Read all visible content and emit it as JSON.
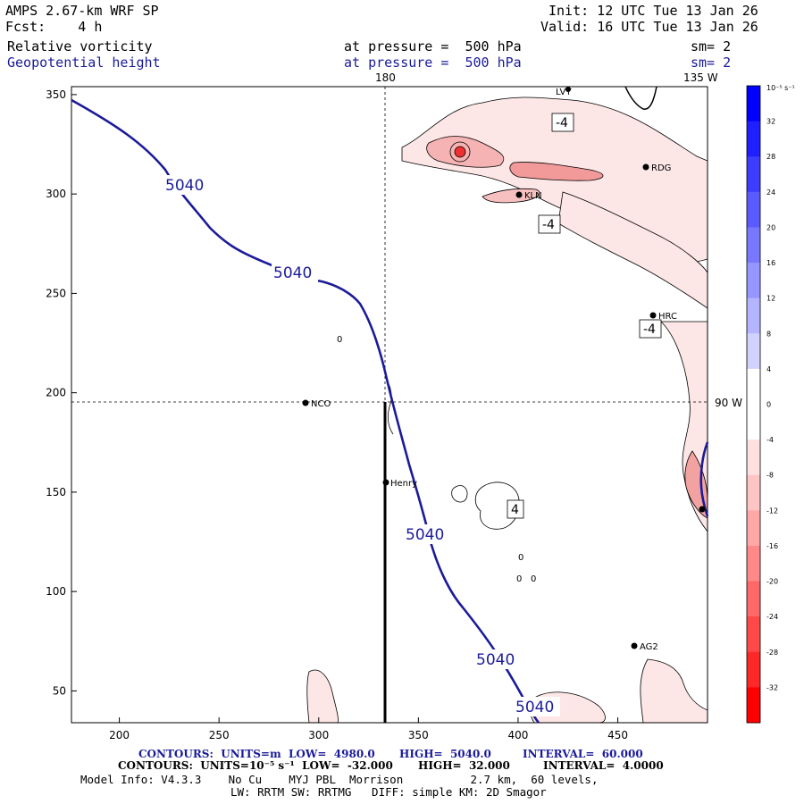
{
  "header": {
    "model_title": "AMPS 2.67-km WRF SP",
    "forecast": "Fcst:    4 h",
    "init": "Init: 12 UTC Tue 13 Jan 26",
    "valid": "Valid: 16 UTC Tue 13 Jan 26",
    "field1_name": "Relative vorticity",
    "field1_level": "at pressure =  500 hPa",
    "field1_sm": "sm= 2",
    "field2_name": "Geopotential height",
    "field2_level": "at pressure =  500 hPa",
    "field2_sm": "sm= 2"
  },
  "map": {
    "top_labels": [
      "180",
      "135 W"
    ],
    "right_label": "90 W",
    "x_axis": {
      "ticks": [
        200,
        250,
        300,
        350,
        400,
        450
      ],
      "range": [
        176,
        495
      ]
    },
    "y_axis": {
      "ticks": [
        50,
        100,
        150,
        200,
        250,
        300,
        350
      ],
      "range": [
        34,
        354
      ]
    },
    "stations": [
      {
        "name": "NCO",
        "x": 293,
        "y": 195
      },
      {
        "name": "Henry",
        "x": 335,
        "y": 155
      },
      {
        "name": "KLN",
        "x": 401,
        "y": 300
      },
      {
        "name": "RDG",
        "x": 465,
        "y": 314
      },
      {
        "name": "HRC",
        "x": 468,
        "y": 239
      },
      {
        "name": "AG2",
        "x": 459,
        "y": 72
      },
      {
        "name": "LVT",
        "x": 425,
        "y": 354
      }
    ],
    "height_contour_labels": [
      "5040",
      "5040",
      "5040",
      "5040",
      "5040"
    ],
    "vorticity_labels": [
      "-4",
      "-4",
      "-4",
      "4"
    ],
    "small_labels": [
      "0",
      "0",
      "0",
      "0"
    ]
  },
  "colorbar": {
    "unit_label": "10⁻⁵ s⁻¹",
    "ticks": [
      32,
      28,
      24,
      20,
      16,
      12,
      8,
      4,
      0,
      -4,
      -8,
      -12,
      -16,
      -20,
      -24,
      -28,
      -32
    ],
    "colors_top_to_bottom": [
      "#0000ff",
      "#1f1fff",
      "#3d3dff",
      "#5a5aff",
      "#7878ff",
      "#9696ff",
      "#b4b4ff",
      "#d2d2ff",
      "#ffffff",
      "#ffffff",
      "#ffe0e0",
      "#ffc4c4",
      "#ffa8a8",
      "#ff8888",
      "#ff6868",
      "#ff4848",
      "#ff2828",
      "#ff0000"
    ]
  },
  "footer": {
    "line1_left": "CONTOURS:  UNITS=m  LOW=  4980.0",
    "line1_mid": "HIGH=  5040.0",
    "line1_right": "INTERVAL=  60.000",
    "line2_left": "CONTOURS:  UNITS=10⁻⁵ s⁻¹  LOW=  -32.000",
    "line2_mid": "HIGH=  32.000",
    "line2_right": "INTERVAL=  4.0000",
    "line3": "Model Info: V4.3.3    No Cu    MYJ PBL  Morrison          2.7 km,  60 levels,",
    "line4": "LW: RRTM SW: RRTMG   DIFF: simple KM: 2D Smagor"
  },
  "colors": {
    "height_contour": "#1b1b9a",
    "vort_fill_light": "#fbe3e3",
    "vort_fill_mid": "#f4a9a9",
    "vort_fill_strong": "#ef5050"
  }
}
